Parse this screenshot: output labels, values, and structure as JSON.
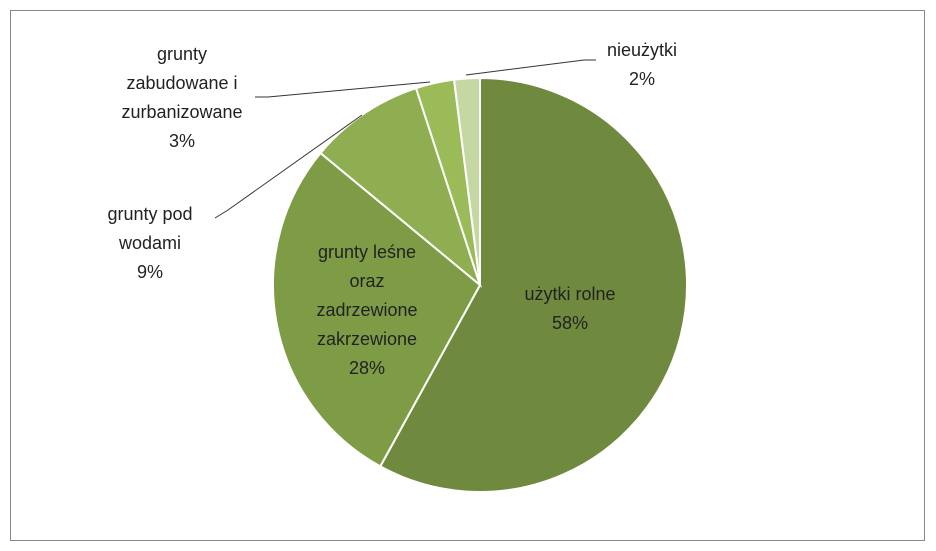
{
  "chart_data": {
    "type": "pie",
    "categories": [
      "użytki rolne",
      "grunty leśne oraz zadrzewione zakrzewione",
      "grunty pod wodami",
      "grunty zabudowane i zurbanizowane",
      "nieużytki"
    ],
    "values": [
      58,
      28,
      9,
      3,
      2
    ],
    "value_labels": [
      "58%",
      "28%",
      "9%",
      "3%",
      "2%"
    ],
    "colors": [
      "#6f8a3e",
      "#7d9c45",
      "#8eae51",
      "#9bbb59",
      "#c5d8a4"
    ]
  }
}
